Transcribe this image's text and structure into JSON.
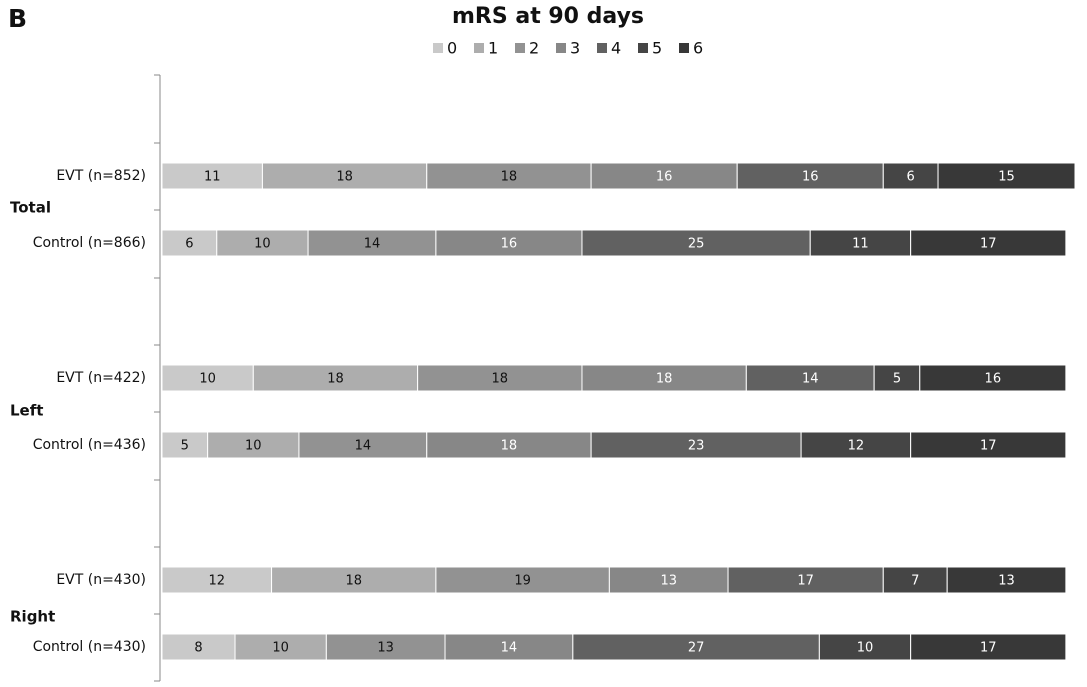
{
  "panel_label": "B",
  "chart_data": {
    "type": "stacked-barh",
    "title": "mRS at 90 days",
    "categories": [
      "EVT (n=852)",
      "Control (n=866)",
      "EVT (n=422)",
      "Control (n=436)",
      "EVT (n=430)",
      "Control (n=430)"
    ],
    "groups": [
      "Total",
      "Left",
      "Right"
    ],
    "xlim": [
      0,
      100
    ],
    "series": [
      {
        "name": "0",
        "color": "#c9c9c9",
        "values": [
          11,
          6,
          10,
          5,
          12,
          8
        ]
      },
      {
        "name": "1",
        "color": "#adadad",
        "values": [
          18,
          10,
          18,
          10,
          18,
          10
        ]
      },
      {
        "name": "2",
        "color": "#929292",
        "values": [
          18,
          14,
          18,
          14,
          19,
          13
        ]
      },
      {
        "name": "3",
        "color": "#878787",
        "values": [
          16,
          16,
          18,
          18,
          13,
          14
        ]
      },
      {
        "name": "4",
        "color": "#616161",
        "values": [
          16,
          25,
          14,
          23,
          17,
          27
        ]
      },
      {
        "name": "5",
        "color": "#454545",
        "values": [
          6,
          11,
          5,
          12,
          7,
          10
        ]
      },
      {
        "name": "6",
        "color": "#383838",
        "values": [
          15,
          17,
          16,
          17,
          13,
          17
        ]
      }
    ]
  }
}
